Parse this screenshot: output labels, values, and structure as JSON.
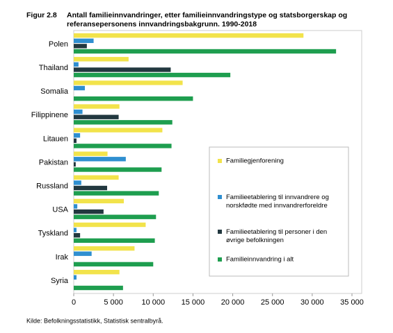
{
  "chart_data": {
    "type": "bar",
    "orientation": "horizontal",
    "figure_label": "Figur 2.8",
    "title": [
      "Antall familieinnvandringer, etter familieinnvandringstype og statsborgerskap og",
      "referansepersonens innvandringsbakgrunn. 1990-2018"
    ],
    "source": "Kilde: Befolkningsstatistikk, Statistisk sentralbyrå.",
    "categories": [
      "Polen",
      "Thailand",
      "Somalia",
      "Filippinene",
      "Litauen",
      "Pakistan",
      "Russland",
      "USA",
      "Tyskland",
      "Irak",
      "Syria"
    ],
    "series": [
      {
        "name": "Familiegjenforening",
        "color": "#f2e34b",
        "values": [
          28900,
          6900,
          13700,
          5750,
          11150,
          4250,
          5650,
          6300,
          9050,
          7650,
          5750
        ]
      },
      {
        "name": "Familieetablering til innvandrere og norskfødte med innvandrerforeldre",
        "color": "#2f8fd0",
        "values": [
          2500,
          600,
          1400,
          1100,
          800,
          6550,
          950,
          450,
          350,
          2250,
          350
        ]
      },
      {
        "name": "Familieetablering til personer i den øvrige befolkningen",
        "color": "#22383f",
        "values": [
          1650,
          12200,
          0,
          5650,
          350,
          250,
          4200,
          3750,
          800,
          0,
          0
        ]
      },
      {
        "name": "Familieinnvandring i alt",
        "color": "#1e9e4f",
        "values": [
          33000,
          19700,
          15000,
          12400,
          12300,
          11050,
          10700,
          10350,
          10200,
          10000,
          6200
        ]
      }
    ],
    "xlim": [
      0,
      35000
    ],
    "xticks": [
      0,
      {
        "value": 5000,
        "label": "5 000"
      },
      {
        "value": 10000,
        "label": "10 000"
      },
      {
        "value": 15000,
        "label": "15 000"
      },
      {
        "value": 20000,
        "label": "20 000"
      },
      {
        "value": 25000,
        "label": "25 000"
      },
      {
        "value": 30000,
        "label": "30 000"
      },
      {
        "value": 35000,
        "label": "35 000"
      }
    ],
    "legend": "lower right"
  }
}
